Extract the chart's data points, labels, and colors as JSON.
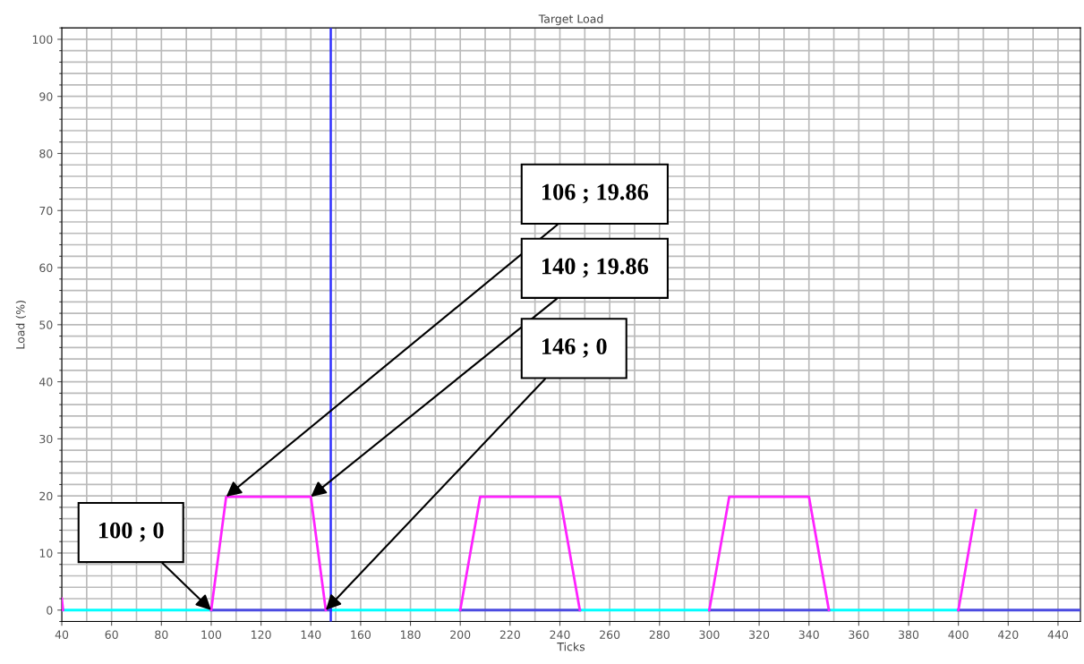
{
  "chart_data": {
    "type": "line",
    "title": "Target Load",
    "xlabel": "Ticks",
    "ylabel": "Load (%)",
    "xlim": [
      40,
      449
    ],
    "ylim": [
      -2,
      102
    ],
    "xticks": [
      40,
      60,
      80,
      100,
      120,
      140,
      160,
      180,
      200,
      220,
      240,
      260,
      280,
      300,
      320,
      340,
      360,
      380,
      400,
      420,
      440
    ],
    "yticks": [
      0,
      10,
      20,
      30,
      40,
      50,
      60,
      70,
      80,
      90,
      100
    ],
    "grid": true,
    "legend": false,
    "marker": "none",
    "line_style": "solid",
    "series": [
      {
        "color": "#00ffff",
        "x": [
          40,
          100,
          null,
          148,
          200,
          null,
          248,
          300,
          null,
          348,
          400
        ],
        "values": [
          0,
          0,
          null,
          0,
          0,
          null,
          0,
          0,
          null,
          0,
          0
        ]
      },
      {
        "color": "#4a4ae0",
        "x": [
          100,
          148,
          null,
          200,
          248,
          null,
          300,
          348,
          null,
          400,
          449
        ],
        "values": [
          0,
          0,
          null,
          0,
          0,
          null,
          0,
          0,
          null,
          0,
          0
        ]
      },
      {
        "color": "#ff22ff",
        "x": [
          40,
          40.5,
          null,
          100,
          106,
          140,
          146,
          null,
          200,
          208,
          240,
          248,
          null,
          300,
          308,
          340,
          348,
          null,
          400,
          407
        ],
        "values": [
          2,
          0,
          null,
          0,
          19.86,
          19.86,
          0,
          null,
          0,
          19.86,
          19.86,
          0,
          null,
          0,
          19.86,
          19.86,
          0,
          null,
          0,
          17.5
        ]
      }
    ],
    "ref_lines": [
      {
        "axis": "x",
        "value": 148,
        "color": "#3030ff"
      }
    ],
    "annotations": [
      {
        "text": "106 ; 19.86",
        "x": 106,
        "y": 19.86
      },
      {
        "text": "140 ; 19.86",
        "x": 140,
        "y": 19.86
      },
      {
        "text": "146 ; 0",
        "x": 146,
        "y": 0
      },
      {
        "text": "100 ; 0",
        "x": 100,
        "y": 0
      }
    ]
  }
}
